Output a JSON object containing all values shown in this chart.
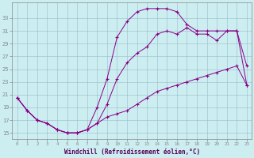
{
  "xlabel": "Windchill (Refroidissement éolien,°C)",
  "bg_color": "#cceef0",
  "line_color": "#880088",
  "line1_x": [
    0,
    1,
    2,
    3,
    4,
    5,
    6,
    7,
    8,
    9,
    10,
    11,
    12,
    13,
    14,
    15,
    16,
    17,
    18,
    19,
    20,
    21,
    22,
    23
  ],
  "line1_y": [
    20.5,
    18.5,
    17.0,
    16.5,
    15.5,
    15.0,
    15.0,
    15.5,
    19.0,
    23.5,
    30.0,
    32.5,
    34.0,
    34.5,
    34.5,
    34.5,
    34.0,
    32.0,
    31.0,
    31.0,
    31.0,
    31.0,
    31.0,
    25.5
  ],
  "line2_x": [
    0,
    1,
    2,
    3,
    4,
    5,
    6,
    7,
    8,
    9,
    10,
    11,
    12,
    13,
    14,
    15,
    16,
    17,
    18,
    19,
    20,
    21,
    22,
    23
  ],
  "line2_y": [
    20.5,
    18.5,
    17.0,
    16.5,
    15.5,
    15.0,
    15.0,
    15.5,
    16.5,
    19.5,
    23.5,
    26.0,
    27.5,
    28.5,
    30.5,
    31.0,
    30.5,
    31.5,
    30.5,
    30.5,
    29.5,
    31.0,
    31.0,
    22.5
  ],
  "line3_x": [
    0,
    1,
    2,
    3,
    4,
    5,
    6,
    7,
    8,
    9,
    10,
    11,
    12,
    13,
    14,
    15,
    16,
    17,
    18,
    19,
    20,
    21,
    22,
    23
  ],
  "line3_y": [
    20.5,
    18.5,
    17.0,
    16.5,
    15.5,
    15.0,
    15.0,
    15.5,
    16.5,
    17.5,
    18.0,
    18.5,
    19.5,
    20.5,
    21.5,
    22.0,
    22.5,
    23.0,
    23.5,
    24.0,
    24.5,
    25.0,
    25.5,
    22.5
  ],
  "ylim": [
    14.0,
    35.5
  ],
  "xlim": [
    -0.5,
    23.5
  ],
  "yticks": [
    15,
    17,
    19,
    21,
    23,
    25,
    27,
    29,
    31,
    33
  ],
  "xticks": [
    0,
    1,
    2,
    3,
    4,
    5,
    6,
    7,
    8,
    9,
    10,
    11,
    12,
    13,
    14,
    15,
    16,
    17,
    18,
    19,
    20,
    21,
    22,
    23
  ],
  "figsize": [
    3.2,
    2.0
  ],
  "dpi": 100
}
